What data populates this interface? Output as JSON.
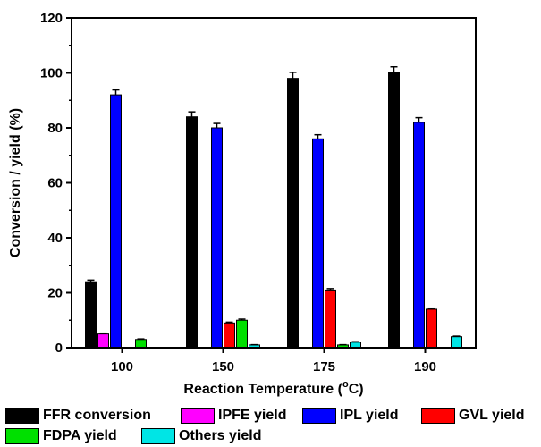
{
  "chart_data": {
    "type": "bar",
    "categories": [
      "100",
      "150",
      "175",
      "190"
    ],
    "series": [
      {
        "name": "FFR conversion",
        "color": "#000000",
        "values": [
          24,
          84,
          98,
          100
        ],
        "errors": [
          0.6,
          1.8,
          2.2,
          2.2
        ]
      },
      {
        "name": "IPFE yield",
        "color": "#ff00ff",
        "values": [
          5,
          0,
          0,
          0
        ],
        "errors": [
          0.3,
          0,
          0,
          0
        ]
      },
      {
        "name": "IPL yield",
        "color": "#0000ff",
        "values": [
          92,
          80,
          76,
          82
        ],
        "errors": [
          1.8,
          1.6,
          1.5,
          1.7
        ]
      },
      {
        "name": "GVL yield",
        "color": "#ff0000",
        "values": [
          0,
          9,
          21,
          14
        ],
        "errors": [
          0,
          0.3,
          0.5,
          0.4
        ]
      },
      {
        "name": "FDPA yield",
        "color": "#00e000",
        "values": [
          3,
          10,
          1,
          0
        ],
        "errors": [
          0.2,
          0.4,
          0.1,
          0
        ]
      },
      {
        "name": "Others yield",
        "color": "#00e5e5",
        "values": [
          0,
          1,
          2,
          4
        ],
        "errors": [
          0,
          0.1,
          0.2,
          0.2
        ]
      }
    ],
    "xlabel": "Reaction Temperature (°C)",
    "ylabel": "Conversion / yield (%)",
    "ylim": [
      0,
      120
    ],
    "yticks": [
      "0",
      "20",
      "40",
      "60",
      "80",
      "100",
      "120"
    ],
    "grid": false,
    "legend_position": "bottom"
  }
}
